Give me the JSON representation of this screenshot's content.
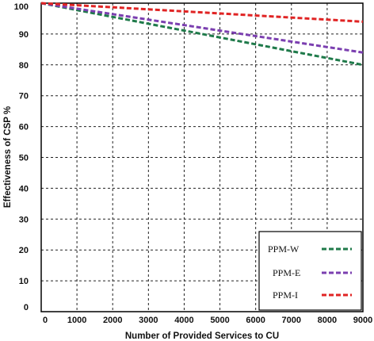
{
  "chart_data": {
    "type": "line",
    "title": "",
    "xlabel": "Number of Provided Services to CU",
    "ylabel": "Effectiveness of CSP %",
    "xlim": [
      0,
      9000
    ],
    "ylim": [
      0,
      100
    ],
    "x_ticks": [
      "0",
      "1000",
      "2000",
      "3000",
      "4000",
      "5000",
      "6000",
      "7000",
      "8000",
      "9000"
    ],
    "y_ticks": [
      "0",
      "10",
      "20",
      "30",
      "40",
      "50",
      "60",
      "70",
      "80",
      "90",
      "100"
    ],
    "grid": true,
    "legend_position": "bottom-right",
    "series": [
      {
        "name": "PPM-W",
        "color": "#1f7a4a",
        "x": [
          0,
          9000
        ],
        "y": [
          100,
          80
        ]
      },
      {
        "name": "PPM-E",
        "color": "#7b3fb0",
        "x": [
          0,
          9000
        ],
        "y": [
          100,
          84
        ]
      },
      {
        "name": "PPM-I",
        "color": "#e02424",
        "x": [
          0,
          9000
        ],
        "y": [
          100,
          94
        ]
      }
    ]
  }
}
